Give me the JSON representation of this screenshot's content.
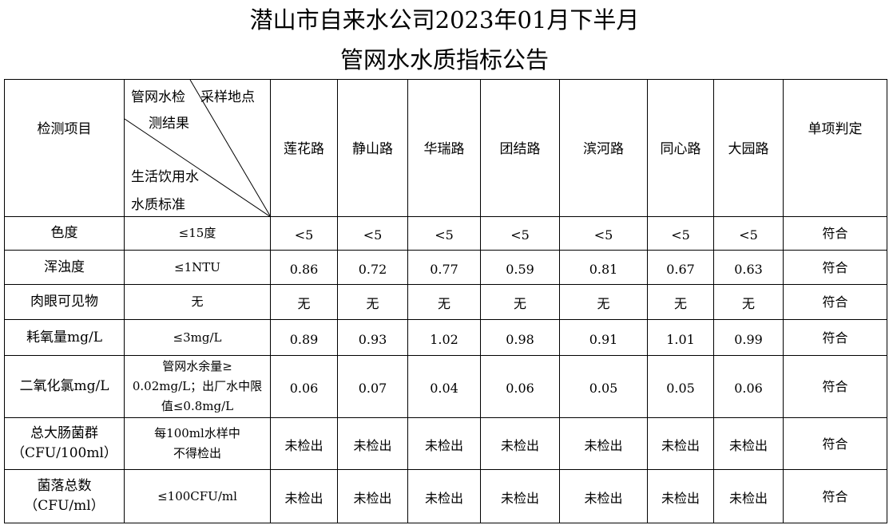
{
  "header": {
    "title_line1": "潜山市自来水公司2023年01月下半月",
    "title_line2": "管网水水质指标公告"
  },
  "table": {
    "item_header": "检测项目",
    "corner": {
      "top_left": [
        "管网水检",
        "测结果"
      ],
      "top_right": "采样地点",
      "bottom": [
        "生活饮用水",
        "水质标准"
      ]
    },
    "columns": [
      "莲花路",
      "静山路",
      "华瑞路",
      "团结路",
      "滨河路",
      "同心路",
      "大园路"
    ],
    "judgment_header": "单项判定",
    "rows": [
      {
        "item": [
          "色度"
        ],
        "standard": [
          "≤15度"
        ],
        "values": [
          "<5",
          "<5",
          "<5",
          "<5",
          "<5",
          "<5",
          "<5"
        ],
        "judgment": "符合"
      },
      {
        "item": [
          "浑浊度"
        ],
        "standard": [
          "≤1NTU"
        ],
        "values": [
          "0.86",
          "0.72",
          "0.77",
          "0.59",
          "0.81",
          "0.67",
          "0.63"
        ],
        "judgment": "符合"
      },
      {
        "item": [
          "肉眼可见物"
        ],
        "standard": [
          "无"
        ],
        "values": [
          "无",
          "无",
          "无",
          "无",
          "无",
          "无",
          "无"
        ],
        "judgment": "符合"
      },
      {
        "item": [
          "耗氧量mg/L"
        ],
        "standard": [
          "≤3mg/L"
        ],
        "values": [
          "0.89",
          "0.93",
          "1.02",
          "0.98",
          "0.91",
          "1.01",
          "0.99"
        ],
        "judgment": "符合"
      },
      {
        "item": [
          "二氧化氯mg/L"
        ],
        "standard": [
          "管网水余量≥",
          "0.02mg/L；出厂水中限",
          "值≤0.8mg/L"
        ],
        "values": [
          "0.06",
          "0.07",
          "0.04",
          "0.06",
          "0.05",
          "0.05",
          "0.06"
        ],
        "judgment": "符合"
      },
      {
        "item": [
          "总大肠菌群",
          "（CFU/100ml）"
        ],
        "standard": [
          "每100ml水样中",
          "不得检出"
        ],
        "values": [
          "未检出",
          "未检出",
          "未检出",
          "未检出",
          "未检出",
          "未检出",
          "未检出"
        ],
        "judgment": "符合"
      },
      {
        "item": [
          "菌落总数",
          "（CFU/ml）"
        ],
        "standard": [
          "≤100CFU/ml"
        ],
        "values": [
          "未检出",
          "未检出",
          "未检出",
          "未检出",
          "未检出",
          "未检出",
          "未检出"
        ],
        "judgment": "符合"
      }
    ]
  }
}
